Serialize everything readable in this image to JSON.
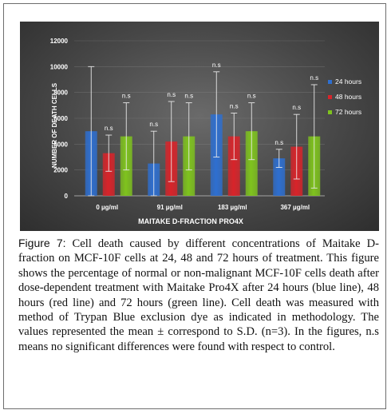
{
  "chart_data": {
    "type": "bar",
    "categories": [
      "0 µg/ml",
      "91 µg/ml",
      "183 µg/ml",
      "367 µg/ml"
    ],
    "xlabel": "MAITAKE D-FRACTION PRO4X",
    "ylabel": "NUMBER OF DEATH CELLS",
    "ylim": [
      0,
      12000
    ],
    "yticks": [
      0,
      2000,
      4000,
      6000,
      8000,
      10000,
      12000
    ],
    "legend_position": "right",
    "series": [
      {
        "name": "24 hours",
        "color": "#2e6fd0",
        "values": [
          5000,
          2500,
          6300,
          2900
        ],
        "errors": [
          5000,
          2500,
          3300,
          700
        ],
        "annotations": [
          "",
          "n.s",
          "n.s",
          "n.s"
        ]
      },
      {
        "name": "48 hours",
        "color": "#d8242a",
        "values": [
          3300,
          4200,
          4600,
          3800
        ],
        "errors": [
          1400,
          3100,
          1800,
          2500
        ],
        "annotations": [
          "n.s",
          "n.s",
          "n.s",
          "n.s"
        ]
      },
      {
        "name": "72 hours",
        "color": "#7fc31e",
        "values": [
          4600,
          4600,
          5000,
          4600
        ],
        "errors": [
          2600,
          2600,
          2200,
          4000
        ],
        "annotations": [
          "n.s",
          "n.s",
          "n.s",
          "n.s"
        ]
      }
    ]
  },
  "caption": {
    "label": "Figure 7:",
    "text": " Cell death caused by different concentrations of Maitake D-fraction on MCF-10F cells at 24, 48 and 72 hours of treatment. This figure shows the percentage of normal or non-malignant MCF-10F cells death after dose-dependent treatment with Maitake Pro4X after 24 hours (blue line), 48 hours (red line) and 72 hours (green line). Cell death was measured with method of Trypan Blue exclusion dye as indicated in methodology. The values represented the mean ± correspond to S.D. (n=3). In the figures, n.s means no significant differences were found with respect to control."
  }
}
